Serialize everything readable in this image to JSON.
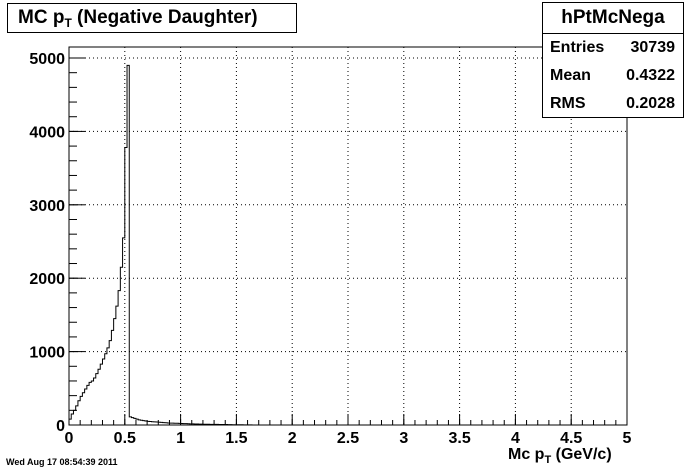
{
  "title": {
    "main": "MC p",
    "sub": "T",
    "rest": " (Negative Daughter)"
  },
  "stats": {
    "name": "hPtMcNega",
    "rows": [
      {
        "label": "Entries",
        "value": "30739"
      },
      {
        "label": "Mean",
        "value": "0.4322"
      },
      {
        "label": "RMS",
        "value": "0.2028"
      }
    ]
  },
  "xaxis_title": {
    "main": "Mc p",
    "sub": "T",
    "rest": " (GeV/c)"
  },
  "datestamp": "Wed Aug 17 08:54:39 2011",
  "colors": {
    "line": "#000000",
    "grid": "#000000",
    "background": "#ffffff"
  },
  "chart_data": {
    "type": "histogram",
    "xlim": [
      0,
      5
    ],
    "ylim": [
      0,
      5150
    ],
    "grid": true,
    "x_ticks": [
      "0",
      "0.5",
      "1",
      "1.5",
      "2",
      "2.5",
      "3",
      "3.5",
      "4",
      "4.5",
      "5"
    ],
    "y_ticks": [
      "0",
      "1000",
      "2000",
      "3000",
      "4000",
      "5000"
    ],
    "bin_width": 0.02,
    "bins": [
      [
        0.0,
        80
      ],
      [
        0.02,
        150
      ],
      [
        0.04,
        200
      ],
      [
        0.06,
        260
      ],
      [
        0.08,
        330
      ],
      [
        0.1,
        390
      ],
      [
        0.12,
        440
      ],
      [
        0.14,
        490
      ],
      [
        0.16,
        540
      ],
      [
        0.18,
        580
      ],
      [
        0.2,
        600
      ],
      [
        0.22,
        640
      ],
      [
        0.24,
        700
      ],
      [
        0.26,
        760
      ],
      [
        0.28,
        830
      ],
      [
        0.3,
        900
      ],
      [
        0.32,
        970
      ],
      [
        0.34,
        1050
      ],
      [
        0.36,
        1150
      ],
      [
        0.38,
        1290
      ],
      [
        0.4,
        1450
      ],
      [
        0.42,
        1620
      ],
      [
        0.44,
        1830
      ],
      [
        0.46,
        2150
      ],
      [
        0.48,
        2550
      ],
      [
        0.5,
        3780
      ],
      [
        0.52,
        4900
      ],
      [
        0.54,
        110
      ],
      [
        0.56,
        100
      ],
      [
        0.58,
        90
      ],
      [
        0.6,
        80
      ],
      [
        0.62,
        70
      ],
      [
        0.64,
        65
      ],
      [
        0.66,
        60
      ],
      [
        0.68,
        55
      ],
      [
        0.7,
        50
      ],
      [
        0.72,
        48
      ],
      [
        0.74,
        45
      ],
      [
        0.76,
        42
      ],
      [
        0.78,
        40
      ],
      [
        0.8,
        38
      ],
      [
        0.82,
        35
      ],
      [
        0.84,
        33
      ],
      [
        0.86,
        30
      ],
      [
        0.88,
        28
      ],
      [
        0.9,
        26
      ],
      [
        0.92,
        25
      ],
      [
        0.94,
        24
      ],
      [
        0.96,
        23
      ],
      [
        0.98,
        22
      ],
      [
        1.0,
        20
      ],
      [
        1.02,
        19
      ],
      [
        1.04,
        18
      ],
      [
        1.06,
        17
      ],
      [
        1.08,
        16
      ],
      [
        1.1,
        15
      ],
      [
        1.12,
        14
      ],
      [
        1.14,
        13
      ],
      [
        1.16,
        12
      ],
      [
        1.18,
        12
      ],
      [
        1.2,
        11
      ],
      [
        1.22,
        10
      ],
      [
        1.24,
        10
      ],
      [
        1.26,
        9
      ],
      [
        1.28,
        9
      ],
      [
        1.3,
        8
      ],
      [
        1.32,
        8
      ],
      [
        1.34,
        7
      ],
      [
        1.36,
        7
      ],
      [
        1.38,
        6
      ],
      [
        1.4,
        6
      ],
      [
        1.42,
        5
      ],
      [
        1.44,
        5
      ],
      [
        1.46,
        4
      ],
      [
        1.48,
        4
      ],
      [
        1.5,
        4
      ],
      [
        1.52,
        3
      ],
      [
        1.54,
        3
      ],
      [
        1.56,
        2
      ],
      [
        1.58,
        2
      ],
      [
        1.6,
        1
      ],
      [
        1.62,
        1
      ],
      [
        1.64,
        0
      ]
    ]
  }
}
